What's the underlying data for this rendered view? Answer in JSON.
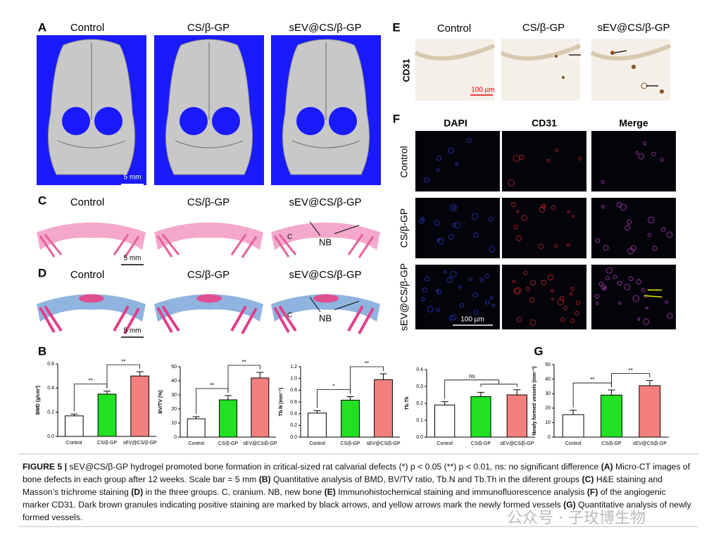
{
  "panel_letters": [
    "A",
    "B",
    "C",
    "D",
    "E",
    "F",
    "G"
  ],
  "panel_a": {
    "labels": [
      "Control",
      "CS/β-GP",
      "sEV@CS/β-GP"
    ],
    "scale_bar": "5 mm"
  },
  "panel_c": {
    "labels": [
      "Control",
      "CS/β-GP",
      "sEV@CS/β-GP"
    ],
    "scale_bar": "5 mm",
    "marks": [
      "C",
      "NB"
    ]
  },
  "panel_d": {
    "labels": [
      "Control",
      "CS/β-GP",
      "sEV@CS/β-GP"
    ],
    "scale_bar": "5 mm",
    "marks": [
      "C",
      "NB"
    ]
  },
  "panel_e": {
    "labels": [
      "Control",
      "CS/β-GP",
      "sEV@CS/β-GP"
    ],
    "row_label": "CD31",
    "scale_bar": "100 µm"
  },
  "panel_f": {
    "columns": [
      "DAPI",
      "CD31",
      "Merge"
    ],
    "rows": [
      "Control",
      "CS/β-GP",
      "sEV@CS/β-GP"
    ],
    "scale_bar": "100 µm"
  },
  "chart_data": [
    {
      "type": "bar",
      "ylabel": "BMD (g/cm³)",
      "categories": [
        "Control",
        "CS/β-GP",
        "sEV@CS/β-GP"
      ],
      "values": [
        0.17,
        0.35,
        0.5
      ],
      "errors": [
        0.015,
        0.025,
        0.035
      ],
      "colors": [
        "#ffffff",
        "#22e022",
        "#f47f7f"
      ],
      "ylim": [
        0,
        0.6
      ],
      "yticks": [
        {
          "value": 0,
          "label": "0.0"
        },
        0.2,
        0.4,
        0.6
      ],
      "annotations": [
        "**",
        "**"
      ]
    },
    {
      "type": "bar",
      "ylabel": "BV/TV (%)",
      "categories": [
        "Control",
        "CS/β-GP",
        "sEV@CS/β-GP"
      ],
      "values": [
        13,
        26.5,
        42
      ],
      "errors": [
        1.5,
        3,
        4
      ],
      "colors": [
        "#ffffff",
        "#22e022",
        "#f47f7f"
      ],
      "ylim": [
        0,
        50
      ],
      "yticks": [
        0,
        10,
        20,
        30,
        40,
        50
      ],
      "annotations": [
        "**",
        "**"
      ]
    },
    {
      "type": "bar",
      "ylabel": "Tb.N (mm⁻¹)",
      "categories": [
        "Control",
        "CS/β-GP",
        "sEV@CS/β-GP"
      ],
      "values": [
        0.41,
        0.63,
        0.98
      ],
      "errors": [
        0.04,
        0.06,
        0.1
      ],
      "colors": [
        "#ffffff",
        "#22e022",
        "#f47f7f"
      ],
      "ylim": [
        0,
        1.2
      ],
      "yticks": [
        {
          "value": 0,
          "label": "0.0"
        },
        0.2,
        0.4,
        0.6,
        0.8,
        {
          "value": 1,
          "label": "1.0"
        },
        1.2
      ],
      "annotations": [
        "*",
        "**"
      ]
    },
    {
      "type": "bar",
      "ylabel": "Tb.Th",
      "categories": [
        "Control",
        "CS/β-GP",
        "sEV@CS/β-GP"
      ],
      "values": [
        0.19,
        0.24,
        0.25
      ],
      "errors": [
        0.02,
        0.025,
        0.03
      ],
      "colors": [
        "#ffffff",
        "#22e022",
        "#f47f7f"
      ],
      "ylim": [
        0,
        0.4
      ],
      "yticks": [
        {
          "value": 0,
          "label": "0.0"
        },
        0.1,
        0.2,
        0.3,
        0.4
      ],
      "annotations": [
        "ns"
      ]
    },
    {
      "type": "bar",
      "ylabel": "Newly formed vessels (mm⁻²)",
      "categories": [
        "Control",
        "CS/β-GP",
        "sEV@CS/β-GP"
      ],
      "values": [
        15.5,
        29,
        35.5
      ],
      "errors": [
        3,
        3.5,
        3.5
      ],
      "colors": [
        "#ffffff",
        "#22e022",
        "#f47f7f"
      ],
      "ylim": [
        0,
        50
      ],
      "yticks": [
        0,
        10,
        20,
        30,
        40,
        50
      ],
      "annotations": [
        "**",
        "**"
      ]
    }
  ],
  "caption": [
    {
      "text": "FIGURE 5 | ",
      "bold": true
    },
    {
      "text": "sEV@CS/β-GP hydrogel promoted bone formation in critical-sized rat calvarial defects (*) p < 0.05 (**) p < 0.01, ns: no significant difference ",
      "bold": false
    },
    {
      "text": "(A)",
      "bold": true
    },
    {
      "text": " Micro-CT images of bone defects in each group after 12 weeks. Scale bar = 5 mm ",
      "bold": false
    },
    {
      "text": "(B)",
      "bold": true
    },
    {
      "text": " Quantitative analysis of BMD, BV/TV ratio, Tb.N and Tb.Th in the diferent groups ",
      "bold": false
    },
    {
      "text": "(C)",
      "bold": true
    },
    {
      "text": " H&E staining and Masson’s trichrome staining ",
      "bold": false
    },
    {
      "text": "(D)",
      "bold": true
    },
    {
      "text": " in the three groups. C, cranium. NB, new bone ",
      "bold": false
    },
    {
      "text": "(E)",
      "bold": true
    },
    {
      "text": " Immunohistochemical staining and immunofluorescence analysis ",
      "bold": false
    },
    {
      "text": "(F)",
      "bold": true
    },
    {
      "text": " of the angiogenic marker CD31. Dark brown granules indicating positive staining are marked by black arrows, and yellow arrows mark the newly formed vessels ",
      "bold": false
    },
    {
      "text": "(G)",
      "bold": true
    },
    {
      "text": " Quantitative analysis of newly formed vessels.",
      "bold": false
    }
  ],
  "watermark": "公众号 · 子玫博生物"
}
